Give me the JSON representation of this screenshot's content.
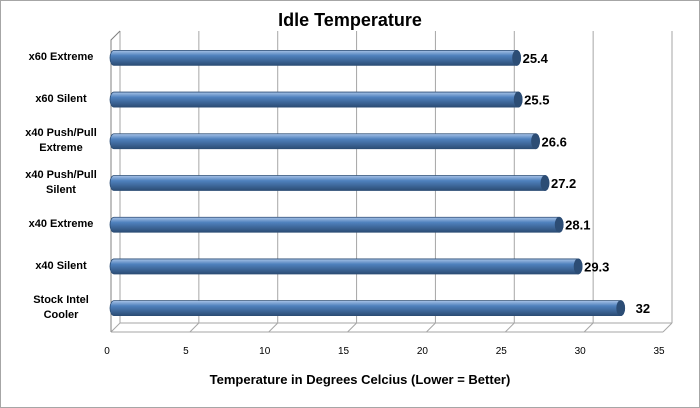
{
  "chart_data": {
    "type": "bar",
    "orientation": "horizontal",
    "title": "Idle Temperature",
    "xlabel": "Temperature in Degrees Celcius (Lower = Better)",
    "ylabel": "",
    "categories": [
      "x60 Extreme",
      "x60 Silent",
      "x40 Push/Pull\nExtreme",
      "x40 Push/Pull\nSilent",
      "x40 Extreme",
      "x40 Silent",
      "Stock Intel\nCooler"
    ],
    "values": [
      25.4,
      25.5,
      26.6,
      27.2,
      28.1,
      29.3,
      32
    ],
    "value_labels": [
      "25.4",
      "25.5",
      "26.6",
      "27.2",
      "28.1",
      "29.3",
      "32"
    ],
    "xlim": [
      0,
      35
    ],
    "xticks": [
      0,
      5,
      10,
      15,
      20,
      25,
      30,
      35
    ],
    "xtick_labels": [
      "0",
      "5",
      "10",
      "15",
      "20",
      "25",
      "30",
      "35"
    ],
    "grid": true,
    "legend": "none",
    "style": "3d-cylinder",
    "colors": {
      "bar": "#4f81bd",
      "bar_dark": "#2c4d75",
      "bar_light": "#a9c4e8",
      "grid": "#a6a6a6",
      "axis": "#808080"
    }
  }
}
